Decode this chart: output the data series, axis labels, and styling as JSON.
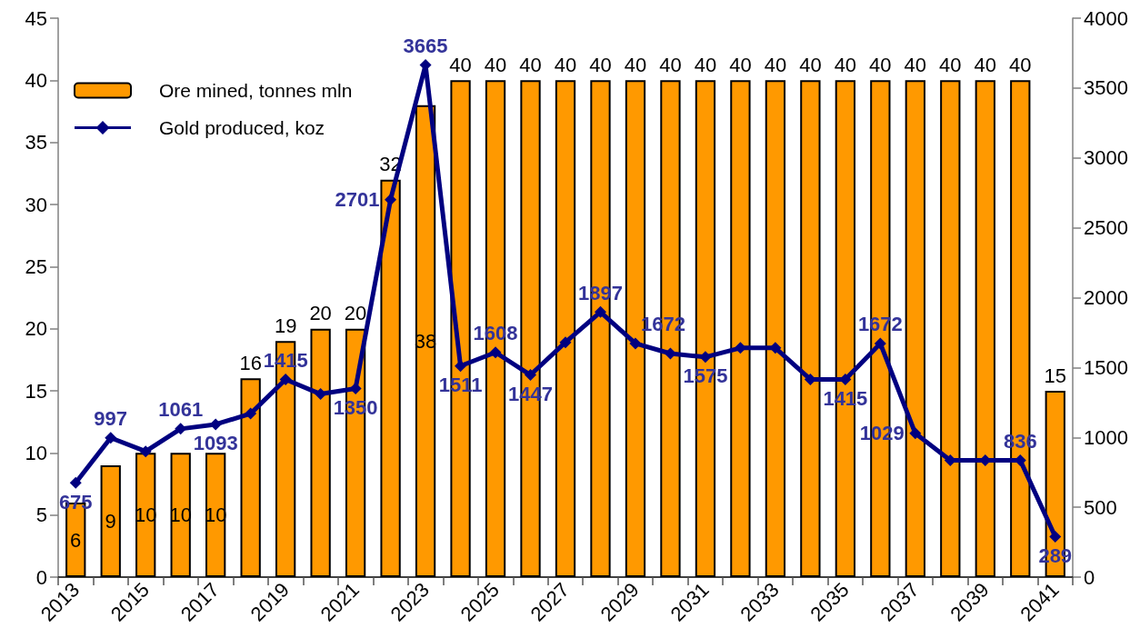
{
  "chart_data": {
    "type": "bar",
    "categories": [
      "2013",
      null,
      "2015",
      null,
      "2017",
      null,
      "2019",
      null,
      "2021",
      null,
      "2023",
      null,
      "2025",
      null,
      "2027",
      null,
      "2029",
      null,
      "2031",
      null,
      "2033",
      null,
      "2035",
      null,
      "2037",
      null,
      "2039",
      null,
      "2041"
    ],
    "series": [
      {
        "name": "Ore mined, tonnes mln",
        "color": "#ff9900",
        "values": [
          6,
          9,
          10,
          10,
          10,
          16,
          19,
          20,
          20,
          32,
          38,
          40,
          40,
          40,
          40,
          40,
          40,
          40,
          40,
          40,
          40,
          40,
          40,
          40,
          40,
          40,
          40,
          40,
          15
        ]
      },
      {
        "name": "Gold produced, koz",
        "type": "line",
        "axis": "y2",
        "color": "#000080",
        "values": [
          675,
          997,
          900,
          1061,
          1093,
          1170,
          1415,
          1310,
          1350,
          2701,
          3665,
          1511,
          1608,
          1447,
          1680,
          1897,
          1672,
          1600,
          1575,
          1640,
          1640,
          1415,
          1415,
          1672,
          1029,
          836,
          836,
          836,
          289
        ],
        "value_labels": [
          "675",
          "997",
          null,
          "1061",
          "1093",
          null,
          "1415",
          null,
          "1350",
          "2701",
          "3665",
          "1511",
          "1608",
          "1447",
          null,
          "1897",
          "1672",
          null,
          "1575",
          null,
          null,
          null,
          "1415",
          "1672",
          "1029",
          null,
          null,
          "836",
          "289"
        ]
      }
    ],
    "ylim": [
      0,
      45
    ],
    "yticks": [
      0,
      5,
      10,
      15,
      20,
      25,
      30,
      35,
      40,
      45
    ],
    "y2lim": [
      0,
      4000
    ],
    "y2ticks": [
      0,
      500,
      1000,
      1500,
      2000,
      2500,
      3000,
      3500,
      4000
    ],
    "data_labels": true,
    "legend": "top left",
    "marker": "diamond",
    "line_style": "solid"
  }
}
